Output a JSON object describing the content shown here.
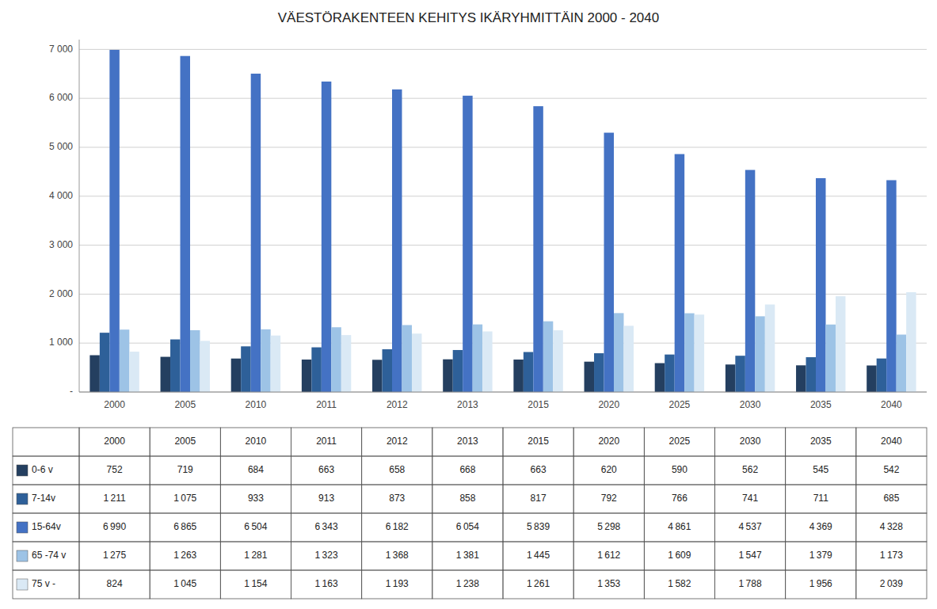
{
  "chart_data": {
    "type": "bar",
    "title": "VÄESTÖRAKENTEEN KEHITYS IKÄRYHMITTÄIN 2000 - 2040",
    "categories": [
      "2000",
      "2005",
      "2010",
      "2011",
      "2012",
      "2013",
      "2015",
      "2020",
      "2025",
      "2030",
      "2035",
      "2040"
    ],
    "series": [
      {
        "name": "0-6 v",
        "color": "#243F60",
        "values": [
          752,
          719,
          684,
          663,
          658,
          668,
          663,
          620,
          590,
          562,
          545,
          542
        ],
        "value_labels": [
          "752",
          "719",
          "684",
          "663",
          "658",
          "668",
          "663",
          "620",
          "590",
          "562",
          "545",
          "542"
        ]
      },
      {
        "name": "7-14v",
        "color": "#2E6099",
        "values": [
          1211,
          1075,
          933,
          913,
          873,
          858,
          817,
          792,
          766,
          741,
          711,
          685
        ],
        "value_labels": [
          "1 211",
          "1 075",
          "933",
          "913",
          "873",
          "858",
          "817",
          "792",
          "766",
          "741",
          "711",
          "685"
        ]
      },
      {
        "name": "15-64v",
        "color": "#4472C4",
        "values": [
          6990,
          6865,
          6504,
          6343,
          6182,
          6054,
          5839,
          5298,
          4861,
          4537,
          4369,
          4328
        ],
        "value_labels": [
          "6 990",
          "6 865",
          "6 504",
          "6 343",
          "6 182",
          "6 054",
          "5 839",
          "5 298",
          "4 861",
          "4 537",
          "4 369",
          "4 328"
        ]
      },
      {
        "name": "65 -74 v",
        "color": "#9DC3E6",
        "values": [
          1275,
          1263,
          1281,
          1323,
          1368,
          1381,
          1445,
          1612,
          1609,
          1547,
          1379,
          1173
        ],
        "value_labels": [
          "1 275",
          "1 263",
          "1 281",
          "1 323",
          "1 368",
          "1 381",
          "1 445",
          "1 612",
          "1 609",
          "1 547",
          "1 379",
          "1 173"
        ]
      },
      {
        "name": "75 v -",
        "color": "#DAE9F5",
        "values": [
          824,
          1045,
          1154,
          1163,
          1193,
          1238,
          1261,
          1353,
          1582,
          1788,
          1956,
          2039
        ],
        "value_labels": [
          "824",
          "1 045",
          "1 154",
          "1 163",
          "1 193",
          "1 238",
          "1 261",
          "1 353",
          "1 582",
          "1 788",
          "1 956",
          "2 039"
        ]
      }
    ],
    "ylim": [
      0,
      7200
    ],
    "yticks": [
      {
        "value": 0,
        "label": "-"
      },
      {
        "value": 1000,
        "label": "1 000"
      },
      {
        "value": 2000,
        "label": "2 000"
      },
      {
        "value": 3000,
        "label": "3 000"
      },
      {
        "value": 4000,
        "label": "4 000"
      },
      {
        "value": 5000,
        "label": "5 000"
      },
      {
        "value": 6000,
        "label": "6 000"
      },
      {
        "value": 7000,
        "label": "7 000"
      }
    ],
    "grid": true
  }
}
